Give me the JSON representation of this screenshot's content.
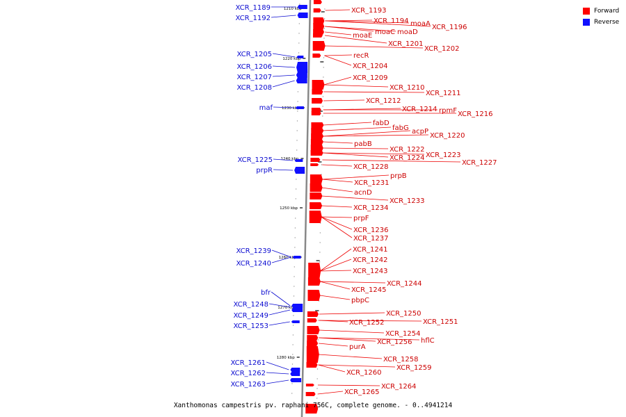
{
  "legend": {
    "forward_label": "Forward",
    "reverse_label": "Reverse",
    "forward_color": "#ff0000",
    "reverse_color": "#1010ff"
  },
  "footer": {
    "title": "Xanthomonas campestris pv. raphani 756C, complete genome. - 0..4941214"
  },
  "axis": {
    "ticks": [
      "1210 kbp",
      "1220 kbp",
      "1230 kbp",
      "1240 kbp",
      "1250 kbp",
      "1260 kbp",
      "1270 kbp",
      "1280 kbp"
    ]
  },
  "reverse_genes": [
    "XCR_1189",
    "XCR_1192",
    "XCR_1205",
    "XCR_1206",
    "XCR_1207",
    "XCR_1208",
    "maf",
    "XCR_1225",
    "prpR",
    "XCR_1239",
    "XCR_1240",
    "bfr",
    "XCR_1248",
    "XCR_1249",
    "XCR_1253",
    "XCR_1261",
    "XCR_1262",
    "XCR_1263"
  ],
  "forward_genes": [
    "XCR_1193",
    "XCR_1194",
    "moaA",
    "XCR_1196",
    "moaC",
    "moaD",
    "moaE",
    "XCR_1201",
    "XCR_1202",
    "recR",
    "XCR_1204",
    "XCR_1209",
    "XCR_1210",
    "XCR_1211",
    "XCR_1212",
    "XCR_1214",
    "rpmF",
    "XCR_1216",
    "fabD",
    "fabG",
    "acpP",
    "XCR_1220",
    "pabB",
    "XCR_1222",
    "XCR_1223",
    "XCR_1224",
    "XCR_1227",
    "XCR_1228",
    "prpB",
    "XCR_1231",
    "acnD",
    "XCR_1233",
    "XCR_1234",
    "prpF",
    "XCR_1236",
    "XCR_1237",
    "XCR_1241",
    "XCR_1242",
    "XCR_1243",
    "XCR_1244",
    "XCR_1245",
    "pbpC",
    "XCR_1250",
    "XCR_1251",
    "XCR_1252",
    "XCR_1254",
    "hflC",
    "XCR_1256",
    "purA",
    "XCR_1258",
    "XCR_1259",
    "XCR_1260",
    "XCR_1264",
    "XCR_1265"
  ]
}
